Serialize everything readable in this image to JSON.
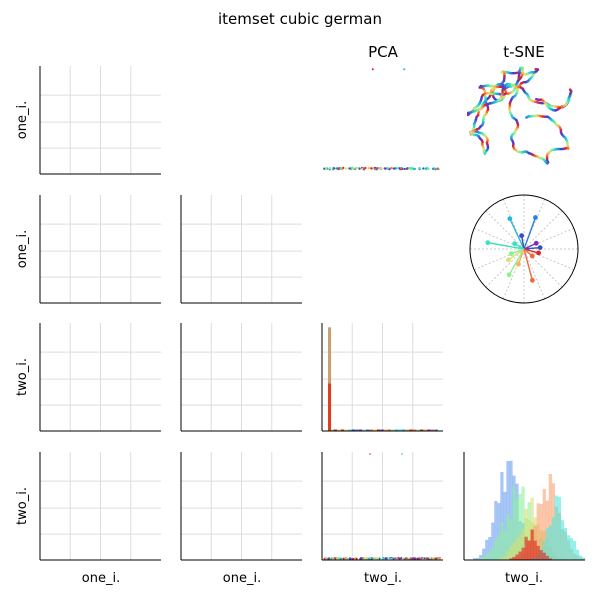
{
  "figure": {
    "title": "itemset cubic german",
    "col_titles": [
      "",
      "",
      "PCA",
      "t-SNE"
    ],
    "row_labels": [
      "one_i.",
      "one_i.",
      "two_i.",
      "two_i."
    ],
    "col_labels": [
      "one_i.",
      "one_i.",
      "two_i.",
      "two_i."
    ]
  },
  "colors": {
    "grid": "#dddddd",
    "axis": "#000000",
    "palette": [
      "#3b4cc0",
      "#2f7fe0",
      "#22b8d8",
      "#3fe0c0",
      "#8cf08c",
      "#d8e070",
      "#f8b060",
      "#f06a3a",
      "#d62a1e",
      "#7a2fc0"
    ]
  },
  "chart_data": [
    {
      "type": "grid",
      "panel": "r0c0",
      "grid": true,
      "series": []
    },
    {
      "type": "grid",
      "panel": "r1c0",
      "grid": true,
      "series": []
    },
    {
      "type": "grid",
      "panel": "r1c1",
      "grid": true,
      "series": []
    },
    {
      "type": "grid",
      "panel": "r2c0",
      "grid": true,
      "series": []
    },
    {
      "type": "grid",
      "panel": "r2c1",
      "grid": true,
      "series": []
    },
    {
      "type": "grid",
      "panel": "r3c0",
      "grid": true,
      "series": []
    },
    {
      "type": "grid",
      "panel": "r3c1",
      "grid": true,
      "series": []
    },
    {
      "type": "scatter",
      "panel": "r0c2",
      "title": "PCA",
      "grid": false,
      "xlim": [
        0,
        1
      ],
      "ylim": [
        0,
        1
      ],
      "y_band": 0.05,
      "outliers": [
        [
          0.42,
          0.97
        ],
        [
          0.68,
          0.97
        ]
      ]
    },
    {
      "type": "line",
      "panel": "r0c3",
      "title": "t-SNE",
      "grid": false,
      "description_points": 360
    },
    {
      "type": "polar",
      "panel": "r1c3",
      "grid": true,
      "spokes": [
        {
          "angle": 70,
          "r": 0.62,
          "color": "#2f7fe0"
        },
        {
          "angle": 115,
          "r": 0.62,
          "color": "#22b8d8"
        },
        {
          "angle": 170,
          "r": 0.68,
          "color": "#3fe0c0"
        },
        {
          "angle": 100,
          "r": 0.25,
          "color": "#3b4cc0"
        },
        {
          "angle": 25,
          "r": 0.25,
          "color": "#7a2fc0"
        },
        {
          "angle": 5,
          "r": 0.3,
          "color": "#3b4cc0"
        },
        {
          "angle": -15,
          "r": 0.28,
          "color": "#d62a1e"
        },
        {
          "angle": -75,
          "r": 0.6,
          "color": "#f06a3a"
        },
        {
          "angle": -120,
          "r": 0.55,
          "color": "#8cf08c"
        },
        {
          "angle": -145,
          "r": 0.35,
          "color": "#d8e070"
        },
        {
          "angle": -160,
          "r": 0.25,
          "color": "#8cf08c"
        },
        {
          "angle": -110,
          "r": 0.3,
          "color": "#f8b060"
        },
        {
          "angle": 150,
          "r": 0.2,
          "color": "#3fe0c0"
        },
        {
          "angle": -40,
          "r": 0.2,
          "color": "#f06a3a"
        }
      ]
    },
    {
      "type": "bar",
      "panel": "r2c2",
      "grid": true,
      "xlim": [
        0,
        1
      ],
      "ylim": [
        0,
        1
      ],
      "bins": [
        {
          "x": 0.05,
          "value": 0.96,
          "color": "#c8a070"
        },
        {
          "x": 0.05,
          "value": 0.44,
          "color": "#e03a20"
        }
      ],
      "baseline_bins": 30
    },
    {
      "type": "scatter",
      "panel": "r3c2",
      "grid": true,
      "xlim": [
        0,
        1
      ],
      "ylim": [
        0,
        1
      ],
      "y_band": 0.01
    },
    {
      "type": "bar",
      "panel": "r3c3",
      "grid": false,
      "xlim": [
        0,
        1
      ],
      "ylim": [
        0,
        1
      ],
      "series": [
        {
          "color": "#6aa0f0",
          "center": 0.35,
          "spread": 0.09,
          "peak": 0.9
        },
        {
          "color": "#8cf0a0",
          "center": 0.45,
          "spread": 0.12,
          "peak": 0.55
        },
        {
          "color": "#d8e070",
          "center": 0.55,
          "spread": 0.1,
          "peak": 0.45
        },
        {
          "color": "#f8a070",
          "center": 0.7,
          "spread": 0.1,
          "peak": 0.65
        },
        {
          "color": "#50e8e0",
          "center": 0.78,
          "spread": 0.08,
          "peak": 0.55
        },
        {
          "color": "#e0201a",
          "center": 0.55,
          "spread": 0.07,
          "peak": 0.22
        }
      ]
    }
  ]
}
